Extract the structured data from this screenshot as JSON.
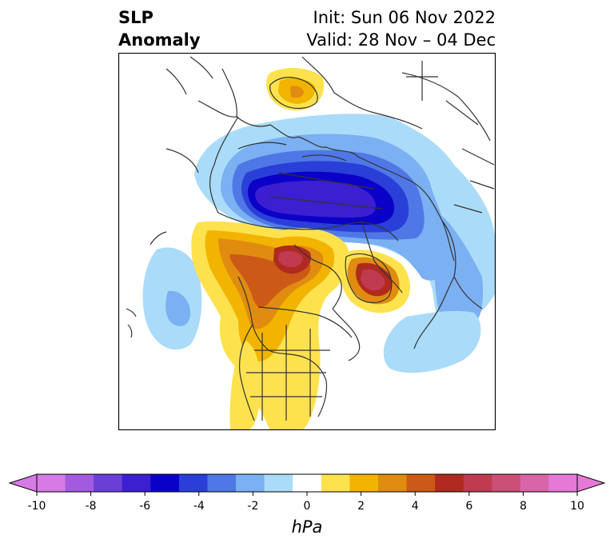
{
  "title": {
    "left_line1": "SLP",
    "left_line2": "Anomaly",
    "right_line1": "Init: Sun 06 Nov 2022",
    "right_line2": "Valid: 28 Nov – 04 Dec"
  },
  "colorbar": {
    "unit_label": "hPa",
    "ticks": [
      "-10",
      "-8",
      "-6",
      "-4",
      "-2",
      "0",
      "2",
      "4",
      "6",
      "8",
      "10"
    ],
    "levels": [
      -10,
      -9,
      -8,
      -7,
      -6,
      -5,
      -4,
      -3,
      -2,
      -1,
      1,
      2,
      3,
      4,
      5,
      6,
      7,
      8,
      9,
      10
    ],
    "colors": [
      "#d67ae6",
      "#a15ae0",
      "#6a3fd8",
      "#3c1fd0",
      "#0b00c8",
      "#2a3fd8",
      "#4f78e6",
      "#7bb0f2",
      "#aadcfa",
      "#ffffff",
      "#fde24e",
      "#f2b400",
      "#e08c10",
      "#cc5a16",
      "#b02a20",
      "#c03b50",
      "#cc4f78",
      "#d965a8",
      "#e678d8"
    ],
    "under_color": "#d67ae6",
    "over_color": "#e678d8"
  }
}
